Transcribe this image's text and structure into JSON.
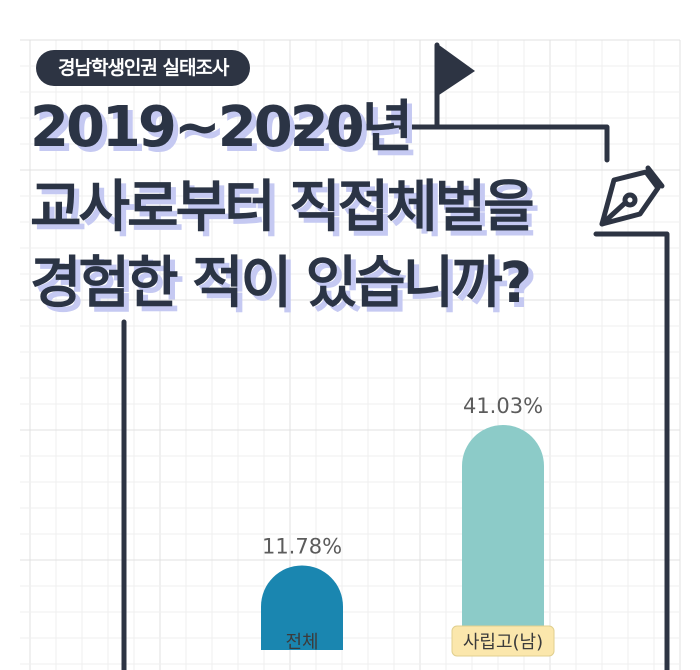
{
  "badge": "경남학생인권 실태조사",
  "title_lines": [
    "2019~2020년",
    "교사로부터 직접체벌을",
    "경험한 적이 있습니까?"
  ],
  "colors": {
    "dark": "#2d3443",
    "bar_all": "#1a86b0",
    "bar_school": "#8ccbc8",
    "label_highlight": "#fbe7ac",
    "title_shadow": "#c5c9f2"
  },
  "icons": [
    "flag-icon",
    "fountain-pen-icon"
  ],
  "chart_data": {
    "type": "bar",
    "categories": [
      "전체",
      "사립고(남)"
    ],
    "values": [
      11.78,
      41.03
    ],
    "value_labels": [
      "11.78%",
      "41.03%"
    ],
    "unit": "%",
    "title": "2019~2020년 교사로부터 직접체벌을 경험한 적이 있습니까?",
    "xlabel": "",
    "ylabel": "",
    "ylim": [
      0,
      45
    ],
    "grid": true
  }
}
